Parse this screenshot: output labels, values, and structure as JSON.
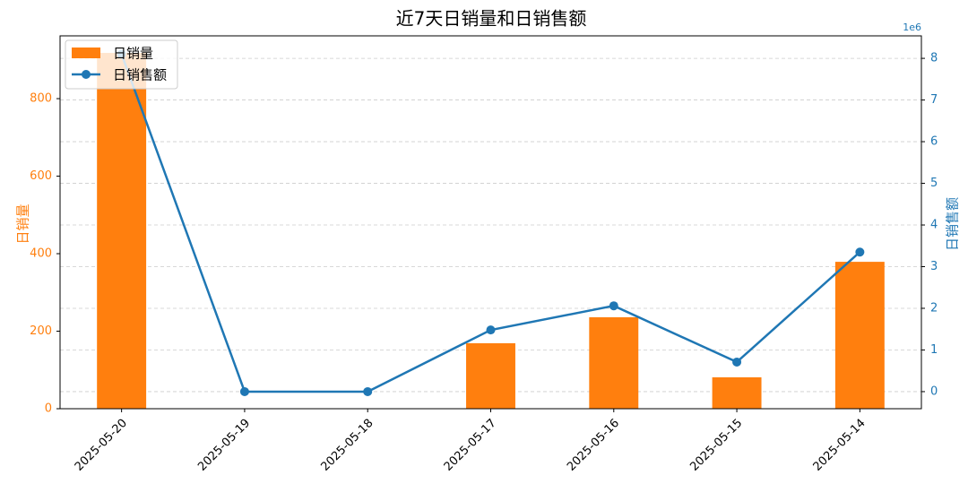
{
  "chart_data": {
    "type": "bar_line",
    "title": "近7天日销量和日销售额",
    "categories": [
      "2025-05-20",
      "2025-05-19",
      "2025-05-18",
      "2025-05-17",
      "2025-05-16",
      "2025-05-15",
      "2025-05-14"
    ],
    "series": [
      {
        "name": "日销量",
        "type": "bar",
        "color": "#ff7f0e",
        "values": [
          918,
          0,
          0,
          169,
          236,
          81,
          379
        ]
      },
      {
        "name": "日销售额",
        "type": "line",
        "axis": "y2",
        "color": "#1f77b4",
        "values": [
          8.1,
          0,
          0,
          1.48,
          2.06,
          0.71,
          3.35
        ]
      }
    ],
    "ylabel": "日销量",
    "y2label": "日销售额",
    "y2_offset_label": "1e6",
    "ylim": [
      0,
      962
    ],
    "yticks": [
      0,
      200,
      400,
      600,
      800
    ],
    "y2lim": [
      -0.41,
      8.54
    ],
    "y2ticks": [
      0,
      1,
      2,
      3,
      4,
      5,
      6,
      7,
      8
    ],
    "grid": true,
    "legend": "upper left"
  }
}
